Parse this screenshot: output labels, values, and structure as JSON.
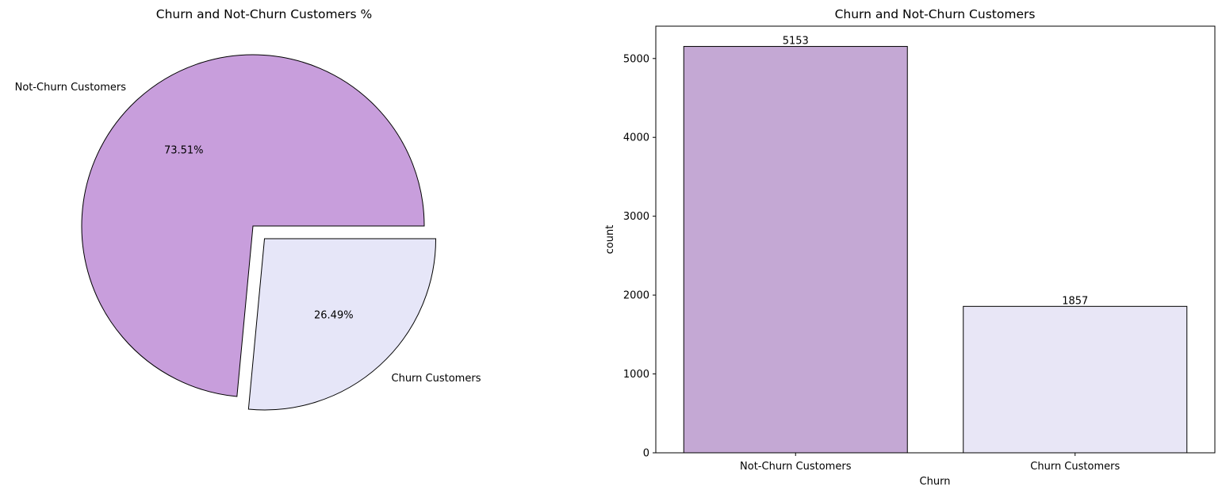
{
  "chart_data": [
    {
      "type": "pie",
      "title": "Churn and Not-Churn Customers %",
      "categories": [
        "Not-Churn Customers",
        "Churn Customers"
      ],
      "values": [
        73.51,
        26.49
      ],
      "value_labels": [
        "73.51%",
        "26.49%"
      ],
      "colors": [
        "#c89edc",
        "#e6e6f8"
      ],
      "explode": [
        0,
        0.1
      ],
      "edgecolor": "#000000"
    },
    {
      "type": "bar",
      "title": "Churn and Not-Churn Customers",
      "xlabel": "Churn",
      "ylabel": "count",
      "categories": [
        "Not-Churn Customers",
        "Churn Customers"
      ],
      "values": [
        5153,
        1857
      ],
      "value_labels": [
        "5153",
        "1857"
      ],
      "colors": [
        "#c4a8d4",
        "#e8e6f6"
      ],
      "ylim": [
        0,
        5410
      ],
      "yticks": [
        0,
        1000,
        2000,
        3000,
        4000,
        5000
      ],
      "grid": false,
      "edgecolor": "#000000"
    }
  ]
}
